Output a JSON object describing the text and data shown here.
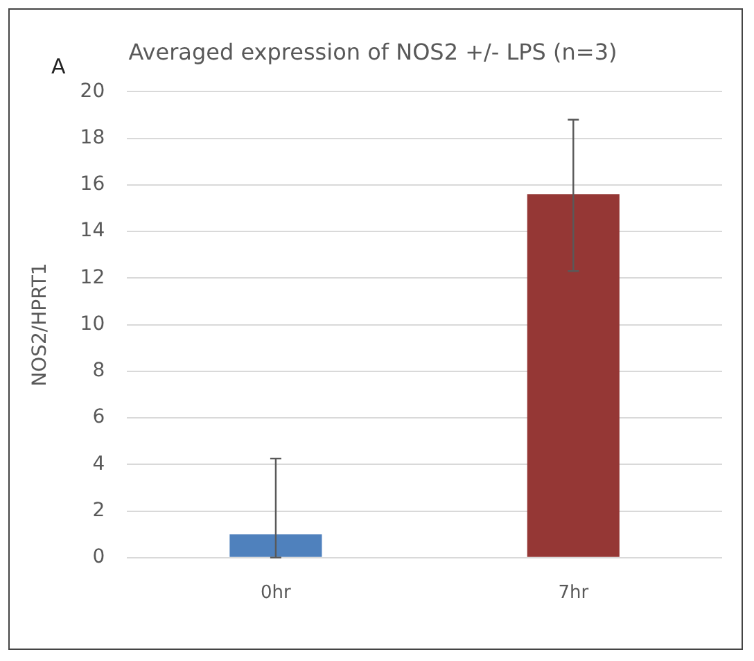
{
  "chart_data": {
    "type": "bar",
    "title": "Averaged expression of NOS2 +/- LPS (n=3)",
    "ylabel": "NOS2/HPRT1",
    "annotations": [
      "A"
    ],
    "categories": [
      "0hr",
      "7hr"
    ],
    "values": [
      1.0,
      15.6
    ],
    "colors": [
      "#4f81bd",
      "#953735"
    ],
    "errors": [
      [
        0,
        4.25
      ],
      [
        12.3,
        18.8
      ]
    ],
    "ylim": [
      0,
      20
    ],
    "yticks": [
      0,
      2,
      4,
      6,
      8,
      10,
      12,
      14,
      16,
      18,
      20
    ],
    "grid": "y",
    "legend": false
  }
}
